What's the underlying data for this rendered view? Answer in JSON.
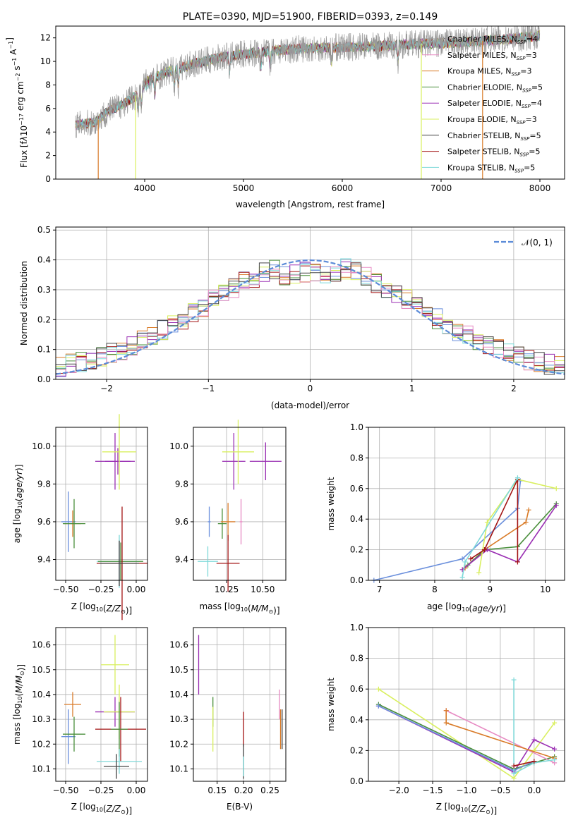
{
  "colors": {
    "series": [
      "#999999",
      "#e78ac3",
      "#d97b28",
      "#4a8f3c",
      "#9a2fb3",
      "#d9ef5f",
      "#444444",
      "#a31515",
      "#7fd9d9"
    ],
    "palette7": [
      "#6a8fdc",
      "#d97b28",
      "#4a8f3c",
      "#9a2fb3",
      "#d9ef5f",
      "#a31515",
      "#7fd9d9",
      "#e78ac3",
      "#444444"
    ],
    "axis": "#000000",
    "grid": "#b0b0b0",
    "normal_line": "#5b8bd8"
  },
  "chart_data": [
    {
      "type": "line",
      "id": "spectrum",
      "title": "PLATE=0390, MJD=51900, FIBERID=0393, z=0.149",
      "xlabel": "wavelength [Angstrom, rest frame]",
      "ylabel": "Flux [f",
      "ylabel_parts": [
        "Flux [f",
        "λ",
        "10",
        "−17",
        " erg cm",
        "−2",
        " s",
        "−1",
        " A",
        "−1",
        "]"
      ],
      "xlim": [
        3100,
        8250
      ],
      "ylim": [
        0,
        13
      ],
      "xticks": [
        "4000",
        "5000",
        "6000",
        "7000",
        "8000"
      ],
      "yticks": [
        "0",
        "2",
        "4",
        "6",
        "8",
        "10",
        "12"
      ],
      "xtick_values": [
        4000,
        5000,
        6000,
        7000,
        8000
      ],
      "ytick_values": [
        0,
        2,
        4,
        6,
        8,
        10,
        12
      ],
      "grid": false,
      "legend_placement": "top-right",
      "legend": [
        {
          "name": "Chabrier MILES, N",
          "sub": "SSP",
          "eq": "=4"
        },
        {
          "name": "Salpeter MILES, N",
          "sub": "SSP",
          "eq": "=3"
        },
        {
          "name": "Kroupa MILES, N",
          "sub": "SSP",
          "eq": "=3"
        },
        {
          "name": "Chabrier ELODIE, N",
          "sub": "SSP",
          "eq": "=5"
        },
        {
          "name": "Salpeter ELODIE, N",
          "sub": "SSP",
          "eq": "=4"
        },
        {
          "name": "Kroupa ELODIE, N",
          "sub": "SSP",
          "eq": "=3"
        },
        {
          "name": "Chabrier STELIB, N",
          "sub": "SSP",
          "eq": "=5"
        },
        {
          "name": "Salpeter STELIB, N",
          "sub": "SSP",
          "eq": "=5"
        },
        {
          "name": "Kroupa STELIB, N",
          "sub": "SSP",
          "eq": "=5"
        }
      ],
      "continuum": {
        "x": [
          3300,
          3500,
          3600,
          3800,
          3950,
          4000,
          4200,
          4500,
          4800,
          5000,
          5300,
          5600,
          6000,
          6400,
          6800,
          7200,
          7500,
          7800,
          8000
        ],
        "y": [
          4.6,
          4.8,
          5.6,
          6.5,
          7.3,
          8.2,
          9.0,
          9.8,
          10.4,
          10.6,
          10.9,
          11.1,
          11.2,
          11.3,
          11.5,
          11.6,
          11.8,
          12.0,
          12.2
        ]
      },
      "spectrum_range": [
        3300,
        8000
      ],
      "drops": [
        {
          "x": 3530,
          "series": 2
        },
        {
          "x": 3910,
          "series": 5
        },
        {
          "x": 6800,
          "series": 5
        },
        {
          "x": 7420,
          "series": 2
        }
      ]
    },
    {
      "type": "histogram",
      "id": "residuals",
      "title": "",
      "xlabel": "(data-model)/error",
      "ylabel": "Normed distribution",
      "xlim": [
        -2.5,
        2.5
      ],
      "ylim": [
        0,
        0.51
      ],
      "xticks": [
        "−2",
        "−1",
        "0",
        "1",
        "2"
      ],
      "yticks": [
        "0.0",
        "0.1",
        "0.2",
        "0.3",
        "0.4",
        "0.5"
      ],
      "xtick_values": [
        -2,
        -1,
        0,
        1,
        2
      ],
      "ytick_values": [
        0,
        0.1,
        0.2,
        0.3,
        0.4,
        0.5
      ],
      "grid": true,
      "bin_width": 0.1,
      "bin_start": -2.5,
      "legend_placement": "top-right",
      "legend": [
        {
          "name": "𝒩(0, 1)"
        }
      ],
      "normal": {
        "mu": 0,
        "sigma": 1
      }
    },
    {
      "type": "scatter",
      "id": "age-vs-Z",
      "xlabel": "Z [log",
      "xlabel_parts": [
        "Z [log",
        "10",
        "(",
        "Z/Z",
        "⊙",
        ")]"
      ],
      "ylabel_parts": [
        "age  [log",
        "10",
        "(",
        "age/yr",
        ")]"
      ],
      "xlim": [
        -0.57,
        0.08
      ],
      "ylim": [
        9.29,
        10.1
      ],
      "xticks": [
        "−0.50",
        "−0.25",
        "0.00"
      ],
      "yticks": [
        "9.4",
        "9.6",
        "9.8",
        "10.0"
      ],
      "xtick_values": [
        -0.5,
        -0.25,
        0.0
      ],
      "ytick_values": [
        9.4,
        9.6,
        9.8,
        10.0
      ],
      "grid": true,
      "points": [
        {
          "x": -0.48,
          "y": 9.6,
          "xerr": 0.05,
          "yerr": 0.16,
          "color": 0
        },
        {
          "x": -0.45,
          "y": 9.59,
          "xerr": 0.06,
          "yerr": 0.07,
          "color": 1
        },
        {
          "x": -0.44,
          "y": 9.59,
          "xerr": 0.08,
          "yerr": 0.13,
          "color": 2
        },
        {
          "x": -0.15,
          "y": 9.92,
          "xerr": 0.14,
          "yerr": 0.15,
          "color": 3
        },
        {
          "x": -0.13,
          "y": 9.92,
          "xerr": 0.09,
          "yerr": 0.07,
          "color": 3
        },
        {
          "x": -0.12,
          "y": 9.97,
          "xerr": 0.12,
          "yerr": 0.2,
          "color": 4
        },
        {
          "x": -0.12,
          "y": 9.39,
          "xerr": 0.16,
          "yerr": 0.14,
          "color": 6
        },
        {
          "x": -0.11,
          "y": 9.39,
          "xerr": 0.16,
          "yerr": 0.1,
          "color": 2
        },
        {
          "x": -0.1,
          "y": 9.38,
          "xerr": 0.18,
          "yerr": 0.3,
          "color": 5
        },
        {
          "x": -0.12,
          "y": 9.38,
          "xerr": 0.14,
          "yerr": 0.12,
          "color": 8
        }
      ]
    },
    {
      "type": "scatter",
      "id": "age-vs-mass",
      "xlabel_parts": [
        "mass [log",
        "10",
        "(",
        "M/M",
        "⊙",
        ")]"
      ],
      "xlim": [
        10.02,
        10.66
      ],
      "ylim": [
        9.29,
        10.1
      ],
      "xticks": [
        "10.25",
        "10.50"
      ],
      "yticks": [
        "9.4",
        "9.6",
        "9.8",
        "10.0"
      ],
      "xtick_values": [
        10.25,
        10.5
      ],
      "ytick_values": [
        9.4,
        9.6,
        9.8,
        10.0
      ],
      "grid": true,
      "points": [
        {
          "x": 10.12,
          "y": 9.39,
          "xerr": 0.07,
          "yerr": 0.08,
          "color": 6
        },
        {
          "x": 10.13,
          "y": 9.6,
          "xerr": 0.01,
          "yerr": 0.08,
          "color": 0
        },
        {
          "x": 10.22,
          "y": 9.59,
          "xerr": 0.03,
          "yerr": 0.08,
          "color": 2
        },
        {
          "x": 10.26,
          "y": 9.6,
          "xerr": 0.05,
          "yerr": 0.1,
          "color": 1
        },
        {
          "x": 10.26,
          "y": 9.38,
          "xerr": 0.08,
          "yerr": 0.15,
          "color": 5
        },
        {
          "x": 10.3,
          "y": 9.92,
          "xerr": 0.08,
          "yerr": 0.15,
          "color": 3
        },
        {
          "x": 10.33,
          "y": 9.97,
          "xerr": 0.11,
          "yerr": 0.17,
          "color": 4
        },
        {
          "x": 10.52,
          "y": 9.92,
          "xerr": 0.11,
          "yerr": 0.1,
          "color": 3
        },
        {
          "x": 10.35,
          "y": 9.6,
          "xerr": 0.01,
          "yerr": 0.12,
          "color": 7
        }
      ]
    },
    {
      "type": "line",
      "id": "massweight-vs-age",
      "ylabel": "mass weight",
      "xlabel_parts": [
        "age  [log",
        "10",
        "(",
        "age/yr",
        ")]"
      ],
      "xlim": [
        6.8,
        10.35
      ],
      "ylim": [
        0,
        1
      ],
      "xticks": [
        "7",
        "8",
        "9",
        "10"
      ],
      "yticks": [
        "0.0",
        "0.2",
        "0.4",
        "0.6",
        "0.8",
        "1.0"
      ],
      "xtick_values": [
        7,
        8,
        9,
        10
      ],
      "ytick_values": [
        0,
        0.2,
        0.4,
        0.6,
        0.8,
        1.0
      ],
      "grid": true,
      "series": [
        {
          "color": 0,
          "x": [
            6.9,
            8.5,
            9.5,
            9.55
          ],
          "y": [
            0.0,
            0.14,
            0.47,
            0.65
          ]
        },
        {
          "color": 1,
          "x": [
            8.55,
            8.9,
            9.65,
            9.7
          ],
          "y": [
            0.08,
            0.2,
            0.38,
            0.46
          ]
        },
        {
          "color": 2,
          "x": [
            8.6,
            8.9,
            9.5,
            10.2
          ],
          "y": [
            0.1,
            0.2,
            0.22,
            0.5
          ]
        },
        {
          "color": 3,
          "x": [
            8.5,
            8.95,
            9.5,
            10.2
          ],
          "y": [
            0.07,
            0.2,
            0.12,
            0.49
          ]
        },
        {
          "color": 4,
          "x": [
            8.8,
            8.95,
            9.5,
            10.2
          ],
          "y": [
            0.05,
            0.38,
            0.66,
            0.6
          ]
        },
        {
          "color": 5,
          "x": [
            8.65,
            8.9,
            9.5,
            9.5
          ],
          "y": [
            0.14,
            0.2,
            0.66,
            0.12
          ]
        },
        {
          "color": 6,
          "x": [
            8.5,
            8.55,
            9.5
          ],
          "y": [
            0.02,
            0.12,
            0.67
          ]
        }
      ]
    },
    {
      "type": "scatter",
      "id": "mass-vs-Z",
      "ylabel_parts": [
        "mass [log",
        "10",
        "(",
        "M/M",
        "⊙",
        ")]"
      ],
      "xlabel_parts": [
        "Z [log",
        "10",
        "(",
        "Z/Z",
        "⊙",
        ")]"
      ],
      "xlim": [
        -0.57,
        0.08
      ],
      "ylim": [
        10.05,
        10.67
      ],
      "xticks": [
        "−0.50",
        "−0.25",
        "0.00"
      ],
      "yticks": [
        "10.1",
        "10.2",
        "10.3",
        "10.4",
        "10.5",
        "10.6"
      ],
      "xtick_values": [
        -0.5,
        -0.25,
        0.0
      ],
      "ytick_values": [
        10.1,
        10.2,
        10.3,
        10.4,
        10.5,
        10.6
      ],
      "grid": true,
      "points": [
        {
          "x": -0.45,
          "y": 10.36,
          "xerr": 0.06,
          "yerr": 0.05,
          "color": 1
        },
        {
          "x": -0.48,
          "y": 10.23,
          "xerr": 0.05,
          "yerr": 0.11,
          "color": 0
        },
        {
          "x": -0.44,
          "y": 10.24,
          "xerr": 0.08,
          "yerr": 0.07,
          "color": 2
        },
        {
          "x": -0.15,
          "y": 10.33,
          "xerr": 0.14,
          "yerr": 0.06,
          "color": 3
        },
        {
          "x": -0.15,
          "y": 10.52,
          "xerr": 0.1,
          "yerr": 0.12,
          "color": 4
        },
        {
          "x": -0.12,
          "y": 10.33,
          "xerr": 0.11,
          "yerr": 0.11,
          "color": 4
        },
        {
          "x": -0.11,
          "y": 10.26,
          "xerr": 0.18,
          "yerr": 0.13,
          "color": 5
        },
        {
          "x": -0.12,
          "y": 10.26,
          "xerr": 0.06,
          "yerr": 0.11,
          "color": 2
        },
        {
          "x": -0.12,
          "y": 10.13,
          "xerr": 0.16,
          "yerr": 0.05,
          "color": 6
        },
        {
          "x": -0.14,
          "y": 10.11,
          "xerr": 0.09,
          "yerr": 0.05,
          "color": 8
        }
      ]
    },
    {
      "type": "scatter",
      "id": "mass-vs-EBV",
      "xlabel": "E(B-V)",
      "xlim": [
        0.105,
        0.28
      ],
      "ylim": [
        10.05,
        10.67
      ],
      "xticks": [
        "0.15",
        "0.20",
        "0.25"
      ],
      "yticks": [
        "10.1",
        "10.2",
        "10.3",
        "10.4",
        "10.5",
        "10.6"
      ],
      "xtick_values": [
        0.15,
        0.2,
        0.25
      ],
      "ytick_values": [
        10.1,
        10.2,
        10.3,
        10.4,
        10.5,
        10.6
      ],
      "grid": true,
      "points": [
        {
          "x": 0.115,
          "y": 10.52,
          "xerr": 0,
          "yerr": 0.12,
          "color": 3
        },
        {
          "x": 0.142,
          "y": 10.33,
          "xerr": 0,
          "yerr": 0.06,
          "color": 2
        },
        {
          "x": 0.142,
          "y": 10.26,
          "xerr": 0,
          "yerr": 0.09,
          "color": 4
        },
        {
          "x": 0.2,
          "y": 10.26,
          "xerr": 0,
          "yerr": 0.07,
          "color": 5
        },
        {
          "x": 0.2,
          "y": 10.13,
          "xerr": 0,
          "yerr": 0.07,
          "color": 8
        },
        {
          "x": 0.2,
          "y": 10.11,
          "xerr": 0,
          "yerr": 0.04,
          "color": 6
        },
        {
          "x": 0.268,
          "y": 10.36,
          "xerr": 0,
          "yerr": 0.06,
          "color": 7
        },
        {
          "x": 0.27,
          "y": 10.26,
          "xerr": 0,
          "yerr": 0.08,
          "color": 1
        },
        {
          "x": 0.273,
          "y": 10.26,
          "xerr": 0,
          "yerr": 0.08,
          "color": 8
        }
      ]
    },
    {
      "type": "line",
      "id": "massweight-vs-Z",
      "ylabel": "mass weight",
      "xlabel_parts": [
        "Z [log",
        "10",
        "(",
        "Z/Z",
        "⊙",
        ")]"
      ],
      "xlim": [
        -2.45,
        0.45
      ],
      "ylim": [
        0,
        1
      ],
      "xticks": [
        "−2.0",
        "−1.5",
        "−1.0",
        "−0.5",
        "0.0"
      ],
      "yticks": [
        "0.0",
        "0.2",
        "0.4",
        "0.6",
        "0.8",
        "1.0"
      ],
      "xtick_values": [
        -2,
        -1.5,
        -1,
        -0.5,
        0
      ],
      "ytick_values": [
        0,
        0.2,
        0.4,
        0.6,
        0.8,
        1.0
      ],
      "grid": true,
      "series": [
        {
          "color": 4,
          "x": [
            -2.3,
            -0.3,
            0.0,
            0.3
          ],
          "y": [
            0.6,
            0.02,
            0.2,
            0.38
          ]
        },
        {
          "color": 3,
          "x": [
            -2.3,
            -0.3,
            0.0,
            0.3
          ],
          "y": [
            0.49,
            0.06,
            0.27,
            0.21
          ]
        },
        {
          "color": 2,
          "x": [
            -2.3,
            -0.3,
            0.0,
            0.3
          ],
          "y": [
            0.5,
            0.08,
            0.12,
            0.16
          ]
        },
        {
          "color": 0,
          "x": [
            -2.3,
            -0.3,
            0.0
          ],
          "y": [
            0.49,
            0.07,
            0.13
          ]
        },
        {
          "color": 7,
          "x": [
            -1.3,
            0.3
          ],
          "y": [
            0.46,
            0.12
          ]
        },
        {
          "color": 1,
          "x": [
            -1.3,
            -1.3,
            0.3
          ],
          "y": [
            0.46,
            0.38,
            0.15
          ]
        },
        {
          "color": 6,
          "x": [
            -0.3,
            -0.3,
            0.0,
            0.3
          ],
          "y": [
            0.66,
            0.05,
            0.12,
            0.14
          ]
        },
        {
          "color": 5,
          "x": [
            -0.3,
            0.0
          ],
          "y": [
            0.1,
            0.13
          ]
        }
      ]
    }
  ]
}
